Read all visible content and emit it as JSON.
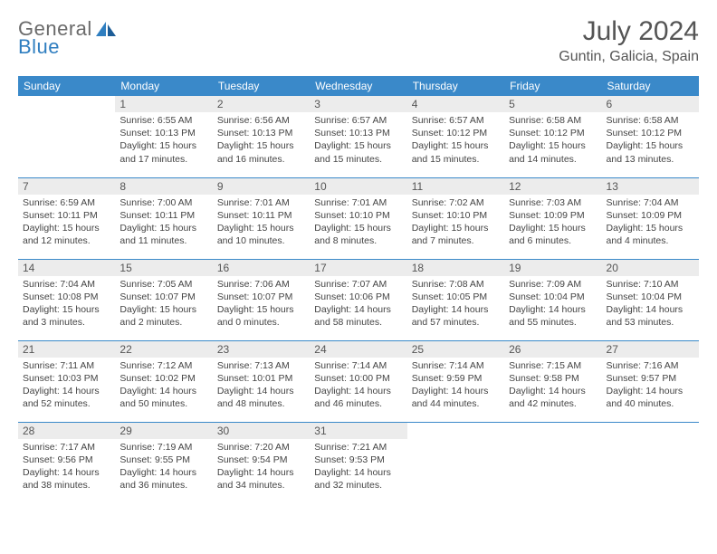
{
  "brand": {
    "line1": "General",
    "line2": "Blue"
  },
  "title": "July 2024",
  "location": "Guntin, Galicia, Spain",
  "colors": {
    "header_bg": "#3a89c9",
    "header_fg": "#ffffff",
    "daynum_bg": "#ececec",
    "border": "#3a89c9",
    "logo_gray": "#6a6a6a",
    "logo_blue": "#2f7ec0"
  },
  "weekdays": [
    "Sunday",
    "Monday",
    "Tuesday",
    "Wednesday",
    "Thursday",
    "Friday",
    "Saturday"
  ],
  "weeks": [
    [
      null,
      {
        "n": "1",
        "sr": "6:55 AM",
        "ss": "10:13 PM",
        "dl": "15 hours and 17 minutes."
      },
      {
        "n": "2",
        "sr": "6:56 AM",
        "ss": "10:13 PM",
        "dl": "15 hours and 16 minutes."
      },
      {
        "n": "3",
        "sr": "6:57 AM",
        "ss": "10:13 PM",
        "dl": "15 hours and 15 minutes."
      },
      {
        "n": "4",
        "sr": "6:57 AM",
        "ss": "10:12 PM",
        "dl": "15 hours and 15 minutes."
      },
      {
        "n": "5",
        "sr": "6:58 AM",
        "ss": "10:12 PM",
        "dl": "15 hours and 14 minutes."
      },
      {
        "n": "6",
        "sr": "6:58 AM",
        "ss": "10:12 PM",
        "dl": "15 hours and 13 minutes."
      }
    ],
    [
      {
        "n": "7",
        "sr": "6:59 AM",
        "ss": "10:11 PM",
        "dl": "15 hours and 12 minutes."
      },
      {
        "n": "8",
        "sr": "7:00 AM",
        "ss": "10:11 PM",
        "dl": "15 hours and 11 minutes."
      },
      {
        "n": "9",
        "sr": "7:01 AM",
        "ss": "10:11 PM",
        "dl": "15 hours and 10 minutes."
      },
      {
        "n": "10",
        "sr": "7:01 AM",
        "ss": "10:10 PM",
        "dl": "15 hours and 8 minutes."
      },
      {
        "n": "11",
        "sr": "7:02 AM",
        "ss": "10:10 PM",
        "dl": "15 hours and 7 minutes."
      },
      {
        "n": "12",
        "sr": "7:03 AM",
        "ss": "10:09 PM",
        "dl": "15 hours and 6 minutes."
      },
      {
        "n": "13",
        "sr": "7:04 AM",
        "ss": "10:09 PM",
        "dl": "15 hours and 4 minutes."
      }
    ],
    [
      {
        "n": "14",
        "sr": "7:04 AM",
        "ss": "10:08 PM",
        "dl": "15 hours and 3 minutes."
      },
      {
        "n": "15",
        "sr": "7:05 AM",
        "ss": "10:07 PM",
        "dl": "15 hours and 2 minutes."
      },
      {
        "n": "16",
        "sr": "7:06 AM",
        "ss": "10:07 PM",
        "dl": "15 hours and 0 minutes."
      },
      {
        "n": "17",
        "sr": "7:07 AM",
        "ss": "10:06 PM",
        "dl": "14 hours and 58 minutes."
      },
      {
        "n": "18",
        "sr": "7:08 AM",
        "ss": "10:05 PM",
        "dl": "14 hours and 57 minutes."
      },
      {
        "n": "19",
        "sr": "7:09 AM",
        "ss": "10:04 PM",
        "dl": "14 hours and 55 minutes."
      },
      {
        "n": "20",
        "sr": "7:10 AM",
        "ss": "10:04 PM",
        "dl": "14 hours and 53 minutes."
      }
    ],
    [
      {
        "n": "21",
        "sr": "7:11 AM",
        "ss": "10:03 PM",
        "dl": "14 hours and 52 minutes."
      },
      {
        "n": "22",
        "sr": "7:12 AM",
        "ss": "10:02 PM",
        "dl": "14 hours and 50 minutes."
      },
      {
        "n": "23",
        "sr": "7:13 AM",
        "ss": "10:01 PM",
        "dl": "14 hours and 48 minutes."
      },
      {
        "n": "24",
        "sr": "7:14 AM",
        "ss": "10:00 PM",
        "dl": "14 hours and 46 minutes."
      },
      {
        "n": "25",
        "sr": "7:14 AM",
        "ss": "9:59 PM",
        "dl": "14 hours and 44 minutes."
      },
      {
        "n": "26",
        "sr": "7:15 AM",
        "ss": "9:58 PM",
        "dl": "14 hours and 42 minutes."
      },
      {
        "n": "27",
        "sr": "7:16 AM",
        "ss": "9:57 PM",
        "dl": "14 hours and 40 minutes."
      }
    ],
    [
      {
        "n": "28",
        "sr": "7:17 AM",
        "ss": "9:56 PM",
        "dl": "14 hours and 38 minutes."
      },
      {
        "n": "29",
        "sr": "7:19 AM",
        "ss": "9:55 PM",
        "dl": "14 hours and 36 minutes."
      },
      {
        "n": "30",
        "sr": "7:20 AM",
        "ss": "9:54 PM",
        "dl": "14 hours and 34 minutes."
      },
      {
        "n": "31",
        "sr": "7:21 AM",
        "ss": "9:53 PM",
        "dl": "14 hours and 32 minutes."
      },
      null,
      null,
      null
    ]
  ],
  "labels": {
    "sunrise": "Sunrise:",
    "sunset": "Sunset:",
    "daylight": "Daylight:"
  }
}
